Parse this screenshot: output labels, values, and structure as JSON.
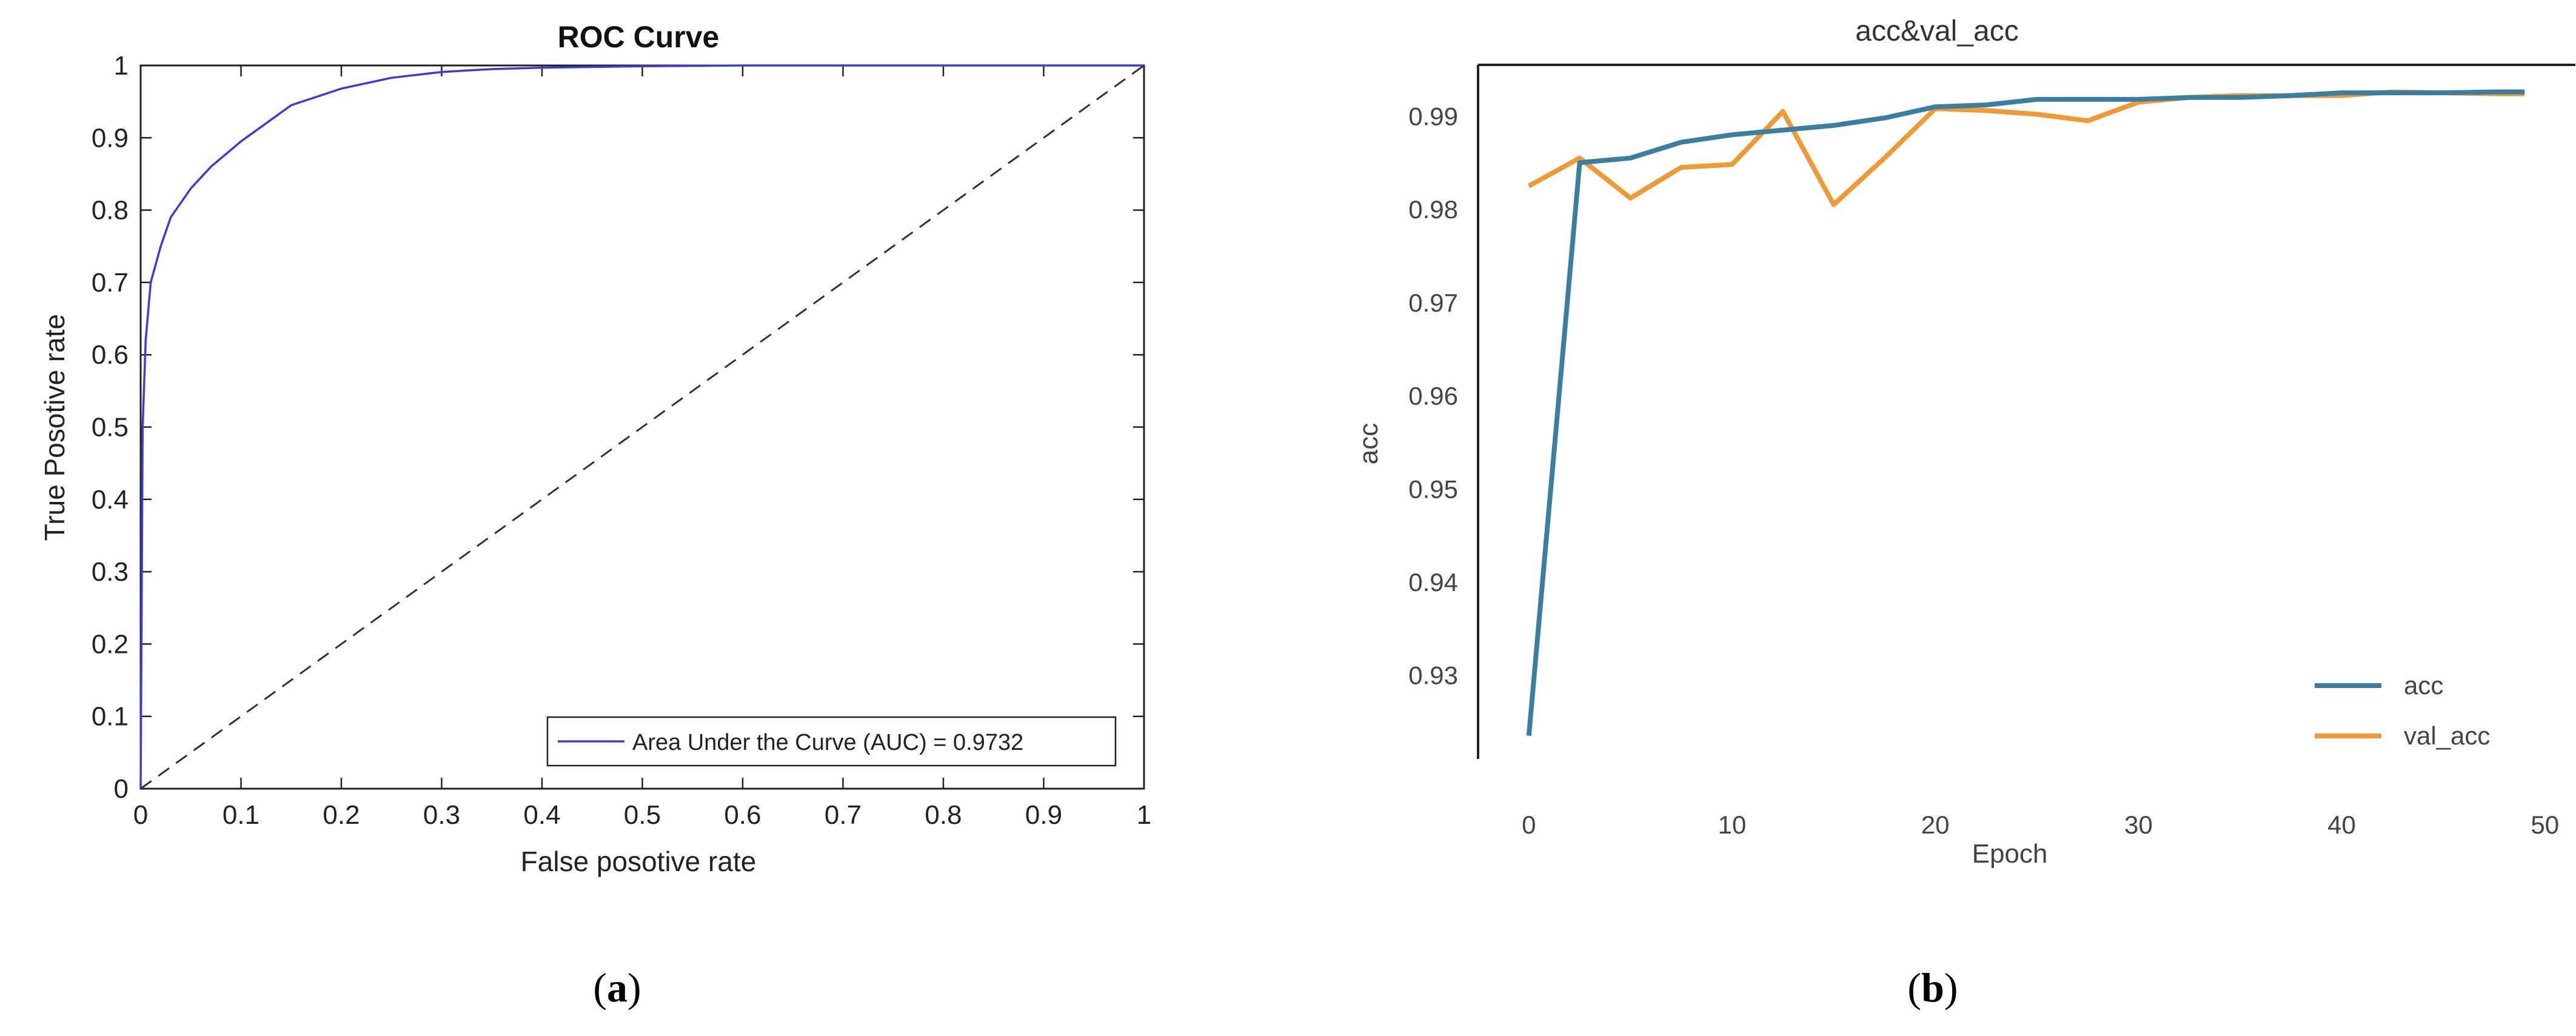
{
  "figure": {
    "caption_a": "a",
    "caption_b": "b"
  },
  "chart_data": [
    {
      "panel": "a",
      "type": "line",
      "title": "ROC Curve",
      "xlabel": "False posotive rate",
      "ylabel": "True Posotive rate",
      "xlim": [
        0,
        1
      ],
      "ylim": [
        0,
        1
      ],
      "xticks": [
        "0",
        "0.1",
        "0.2",
        "0.3",
        "0.4",
        "0.5",
        "0.6",
        "0.7",
        "0.8",
        "0.9",
        "1"
      ],
      "yticks": [
        "0",
        "0.1",
        "0.2",
        "0.3",
        "0.4",
        "0.5",
        "0.6",
        "0.7",
        "0.8",
        "0.9",
        "1"
      ],
      "grid": false,
      "legend_position": "bottom-right",
      "series": [
        {
          "name": "Area Under the Curve (AUC) = 0.9732",
          "color": "#3b3bd6",
          "style": "solid",
          "x": [
            0,
            0.002,
            0.005,
            0.01,
            0.02,
            0.03,
            0.05,
            0.07,
            0.1,
            0.15,
            0.2,
            0.25,
            0.3,
            0.35,
            0.4,
            0.5,
            0.6,
            0.7,
            0.8,
            0.9,
            1.0
          ],
          "y": [
            0,
            0.5,
            0.62,
            0.7,
            0.75,
            0.79,
            0.83,
            0.86,
            0.895,
            0.945,
            0.968,
            0.983,
            0.991,
            0.995,
            0.997,
            0.999,
            1.0,
            1.0,
            1.0,
            1.0,
            1.0
          ]
        },
        {
          "color": "#333333",
          "style": "dashed",
          "x": [
            0,
            1
          ],
          "y": [
            0,
            1
          ]
        }
      ]
    },
    {
      "panel": "b",
      "type": "line",
      "title": "acc&val_acc",
      "xlabel": "Epoch",
      "ylabel": "acc",
      "xlim": [
        -2.5,
        51.5
      ],
      "ylim": [
        0.921,
        0.9955
      ],
      "xticks": [
        0,
        10,
        20,
        30,
        40,
        50
      ],
      "yticks": [
        0.93,
        0.94,
        0.95,
        0.96,
        0.97,
        0.98,
        0.99
      ],
      "grid": false,
      "legend_position": "bottom-right",
      "series": [
        {
          "name": "acc",
          "color": "#3b7ea1",
          "x": [
            0,
            2.5,
            5,
            7.5,
            10,
            12.5,
            15,
            17.5,
            20,
            22.5,
            25,
            27.5,
            30,
            32.5,
            35,
            37.5,
            40,
            42.5,
            45,
            47.5,
            49
          ],
          "y": [
            0.9235,
            0.985,
            0.9855,
            0.9872,
            0.988,
            0.9885,
            0.989,
            0.9898,
            0.991,
            0.9912,
            0.9918,
            0.9918,
            0.9918,
            0.992,
            0.992,
            0.9922,
            0.9925,
            0.9925,
            0.9925,
            0.9926,
            0.9926
          ]
        },
        {
          "name": "val_acc",
          "color": "#ef9a35",
          "x": [
            0,
            2.5,
            5,
            7.5,
            10,
            12.5,
            15,
            17.5,
            20,
            22.5,
            25,
            27.5,
            30,
            32.5,
            35,
            37.5,
            40,
            42.5,
            45,
            47.5,
            49
          ],
          "y": [
            0.9825,
            0.9855,
            0.9812,
            0.9845,
            0.9848,
            0.9905,
            0.9805,
            0.9855,
            0.9908,
            0.9906,
            0.9902,
            0.9895,
            0.9915,
            0.992,
            0.9922,
            0.9922,
            0.9922,
            0.9926,
            0.9925,
            0.9924,
            0.9924
          ]
        }
      ]
    }
  ]
}
